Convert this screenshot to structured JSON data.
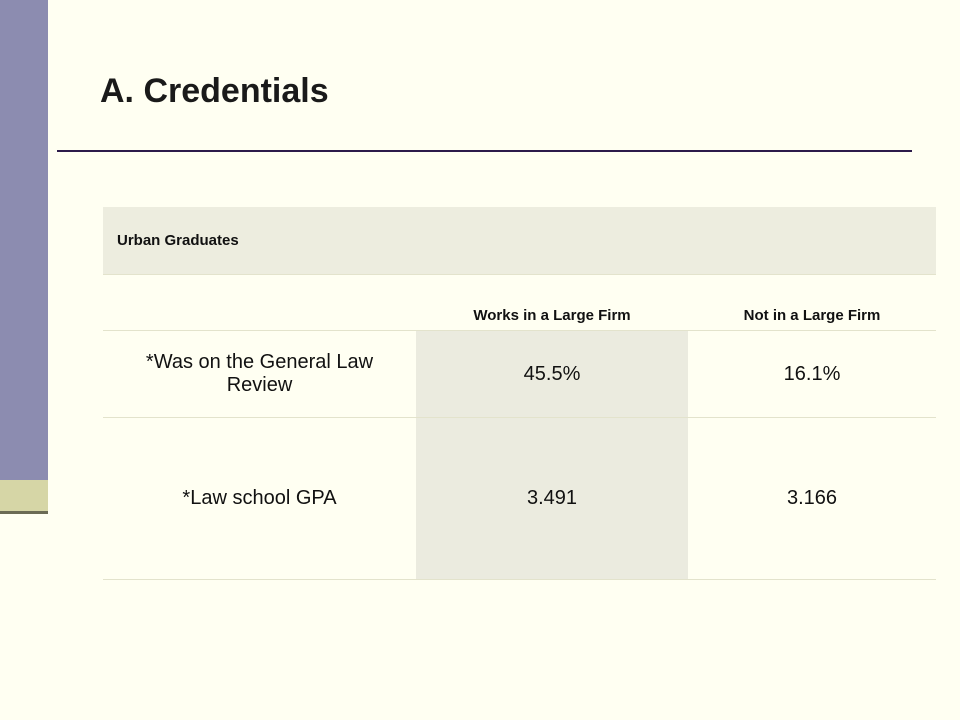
{
  "header": {
    "title": "A. Credentials"
  },
  "table": {
    "caption": "Urban Graduates",
    "columns": [
      "Works in a Large Firm",
      "Not in a Large Firm"
    ],
    "rows": [
      [
        "*Was on the General Law Review",
        "45.5%",
        "16.1%"
      ],
      [
        "*Law school GPA",
        "3.491",
        "3.166"
      ]
    ]
  }
}
